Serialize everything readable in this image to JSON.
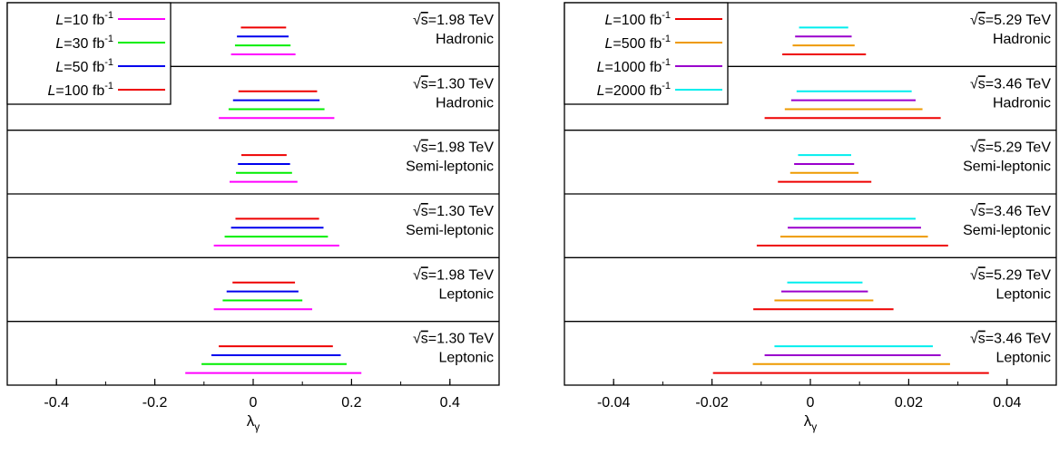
{
  "chart_data": [
    {
      "type": "bar",
      "orientation": "horizontal-interval",
      "xlabel": "λ",
      "xlabel_sub": "γ",
      "xlim": [
        -0.5,
        0.5
      ],
      "xticks": [
        -0.4,
        -0.2,
        0,
        0.2,
        0.4
      ],
      "xtick_labels": [
        "-0.4",
        "-0.2",
        "0",
        "0.2",
        "0.4"
      ],
      "grid": false,
      "legend_position": "top-left",
      "series": [
        {
          "name": "L=10 fb-1",
          "lum_prefix": "L",
          "lum_value": "=10 fb",
          "lum_sup": "-1",
          "color": "#ff00ff"
        },
        {
          "name": "L=30 fb-1",
          "lum_prefix": "L",
          "lum_value": "=30 fb",
          "lum_sup": "-1",
          "color": "#00ee00"
        },
        {
          "name": "L=50 fb-1",
          "lum_prefix": "L",
          "lum_value": "=50 fb",
          "lum_sup": "-1",
          "color": "#0000ee"
        },
        {
          "name": "L=100 fb-1",
          "lum_prefix": "L",
          "lum_value": "=100 fb",
          "lum_sup": "-1",
          "color": "#ee0000"
        }
      ],
      "panels": [
        {
          "energy": "=1.98 TeV",
          "channel": "Hadronic",
          "intervals": [
            [
              -0.045,
              0.086
            ],
            [
              -0.037,
              0.076
            ],
            [
              -0.033,
              0.072
            ],
            [
              -0.025,
              0.067
            ]
          ]
        },
        {
          "energy": "=1.30 TeV",
          "channel": "Hadronic",
          "intervals": [
            [
              -0.07,
              0.165
            ],
            [
              -0.05,
              0.145
            ],
            [
              -0.041,
              0.135
            ],
            [
              -0.03,
              0.13
            ]
          ]
        },
        {
          "energy": "=1.98 TeV",
          "channel": "Semi-leptonic",
          "intervals": [
            [
              -0.048,
              0.09
            ],
            [
              -0.035,
              0.079
            ],
            [
              -0.031,
              0.075
            ],
            [
              -0.024,
              0.068
            ]
          ]
        },
        {
          "energy": "=1.30 TeV",
          "channel": "Semi-leptonic",
          "intervals": [
            [
              -0.08,
              0.175
            ],
            [
              -0.058,
              0.152
            ],
            [
              -0.045,
              0.143
            ],
            [
              -0.036,
              0.134
            ]
          ]
        },
        {
          "energy": "=1.98 TeV",
          "channel": "Leptonic",
          "intervals": [
            [
              -0.08,
              0.12
            ],
            [
              -0.062,
              0.1
            ],
            [
              -0.054,
              0.092
            ],
            [
              -0.042,
              0.085
            ]
          ]
        },
        {
          "energy": "=1.30 TeV",
          "channel": "Leptonic",
          "intervals": [
            [
              -0.138,
              0.22
            ],
            [
              -0.105,
              0.19
            ],
            [
              -0.085,
              0.178
            ],
            [
              -0.07,
              0.162
            ]
          ]
        }
      ]
    },
    {
      "type": "bar",
      "orientation": "horizontal-interval",
      "xlabel": "λ",
      "xlabel_sub": "γ",
      "xlim": [
        -0.05,
        0.05
      ],
      "xticks": [
        -0.04,
        -0.02,
        0,
        0.02,
        0.04
      ],
      "xtick_labels": [
        "-0.04",
        "-0.02",
        "0",
        "0.02",
        "0.04"
      ],
      "grid": false,
      "legend_position": "top-left",
      "series": [
        {
          "name": "L=100 fb-1",
          "lum_prefix": "L",
          "lum_value": "=100 fb",
          "lum_sup": "-1",
          "color": "#ee0000"
        },
        {
          "name": "L=500 fb-1",
          "lum_prefix": "L",
          "lum_value": "=500 fb",
          "lum_sup": "-1",
          "color": "#ee9a00"
        },
        {
          "name": "L=1000 fb-1",
          "lum_prefix": "L",
          "lum_value": "=1000 fb",
          "lum_sup": "-1",
          "color": "#9a00cd"
        },
        {
          "name": "L=2000 fb-1",
          "lum_prefix": "L",
          "lum_value": "=2000 fb",
          "lum_sup": "-1",
          "color": "#00eeee"
        }
      ],
      "panels": [
        {
          "energy": "=5.29 TeV",
          "channel": "Hadronic",
          "intervals": [
            [
              -0.0057,
              0.0113
            ],
            [
              -0.0036,
              0.009
            ],
            [
              -0.0031,
              0.0084
            ],
            [
              -0.0023,
              0.0077
            ]
          ]
        },
        {
          "energy": "=3.46 TeV",
          "channel": "Hadronic",
          "intervals": [
            [
              -0.0093,
              0.0265
            ],
            [
              -0.0052,
              0.0228
            ],
            [
              -0.0039,
              0.0214
            ],
            [
              -0.0028,
              0.0206
            ]
          ]
        },
        {
          "energy": "=5.29 TeV",
          "channel": "Semi-leptonic",
          "intervals": [
            [
              -0.0066,
              0.0124
            ],
            [
              -0.0041,
              0.0098
            ],
            [
              -0.0033,
              0.0089
            ],
            [
              -0.0025,
              0.0083
            ]
          ]
        },
        {
          "energy": "=3.46 TeV",
          "channel": "Semi-leptonic",
          "intervals": [
            [
              -0.0109,
              0.028
            ],
            [
              -0.0061,
              0.0239
            ],
            [
              -0.0046,
              0.0225
            ],
            [
              -0.0034,
              0.0214
            ]
          ]
        },
        {
          "energy": "=5.29 TeV",
          "channel": "Leptonic",
          "intervals": [
            [
              -0.0116,
              0.0169
            ],
            [
              -0.0073,
              0.0128
            ],
            [
              -0.0059,
              0.0117
            ],
            [
              -0.0047,
              0.0106
            ]
          ]
        },
        {
          "energy": "=3.46 TeV",
          "channel": "Leptonic",
          "intervals": [
            [
              -0.0198,
              0.0363
            ],
            [
              -0.0117,
              0.0284
            ],
            [
              -0.0093,
              0.0265
            ],
            [
              -0.0073,
              0.0249
            ]
          ]
        }
      ]
    }
  ]
}
